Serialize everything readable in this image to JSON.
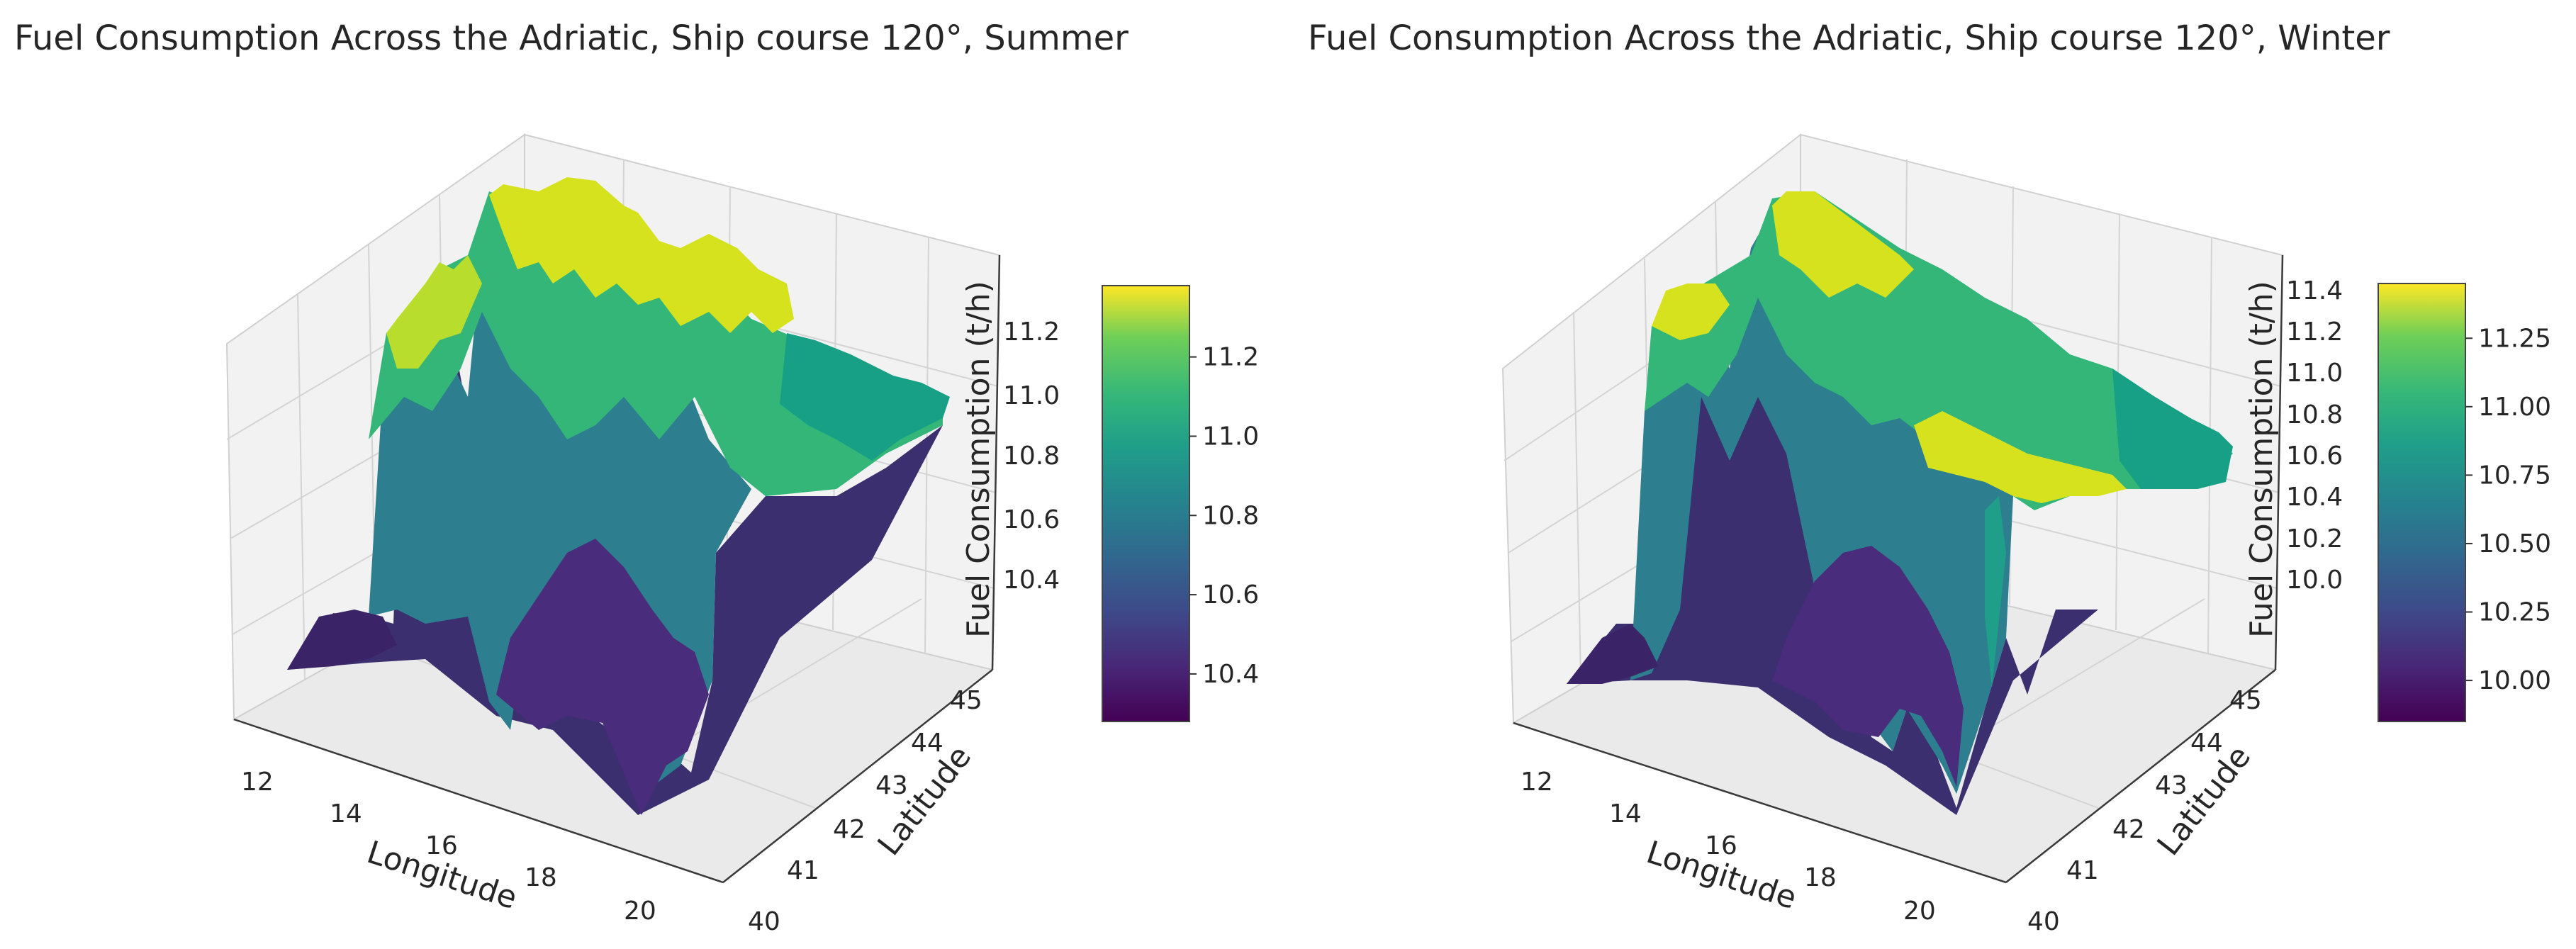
{
  "chart_data": [
    {
      "type": "surface3d",
      "title": "Fuel Consumption Across the Adriatic, Ship course 120°, Summer",
      "xlabel": "Longitude",
      "ylabel": "Latitude",
      "zlabel": "Fuel Consumption (t/h)",
      "x_ticks": [
        "12",
        "14",
        "16",
        "18",
        "20"
      ],
      "y_ticks": [
        "40",
        "41",
        "42",
        "43",
        "44",
        "45"
      ],
      "z_ticks": [
        "10.4",
        "10.6",
        "10.8",
        "11.0",
        "11.2"
      ],
      "colorbar_ticks": [
        "10.4",
        "10.6",
        "10.8",
        "11.0",
        "11.2"
      ],
      "colormap": "viridis",
      "xlim": [
        11.5,
        21.5
      ],
      "ylim": [
        39.5,
        46.5
      ],
      "zlim": [
        10.28,
        11.38
      ],
      "colorbar_range": [
        10.28,
        11.38
      ]
    },
    {
      "type": "surface3d",
      "title": "Fuel Consumption Across the Adriatic, Ship course 120°, Winter",
      "xlabel": "Longitude",
      "ylabel": "Latitude",
      "zlabel": "Fuel Consumption (t/h)",
      "x_ticks": [
        "12",
        "14",
        "16",
        "18",
        "20"
      ],
      "y_ticks": [
        "40",
        "41",
        "42",
        "43",
        "44",
        "45"
      ],
      "z_ticks": [
        "10.0",
        "10.2",
        "10.4",
        "10.6",
        "10.8",
        "11.0",
        "11.2",
        "11.4"
      ],
      "colorbar_ticks": [
        "10.00",
        "10.25",
        "10.50",
        "10.75",
        "11.00",
        "11.25"
      ],
      "colormap": "viridis",
      "xlim": [
        11.5,
        21.5
      ],
      "ylim": [
        39.5,
        46.5
      ],
      "zlim": [
        9.85,
        11.45
      ],
      "colorbar_range": [
        9.85,
        11.45
      ]
    }
  ]
}
